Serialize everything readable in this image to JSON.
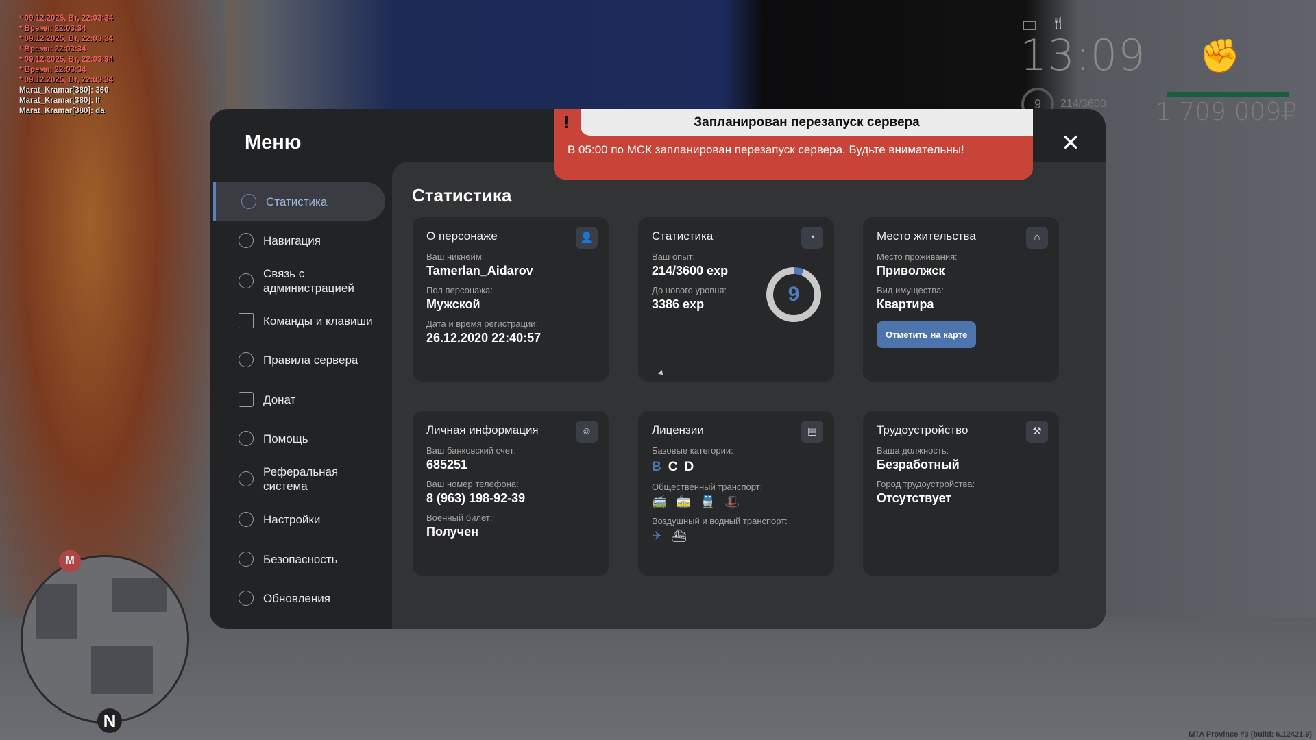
{
  "chat": [
    {
      "text": "* 09.12.2025, Вт, 22:03:34",
      "color": "#f06060"
    },
    {
      "text": "* Время: 22:03:34",
      "color": "#f06060"
    },
    {
      "text": "* 09.12.2025, Вт, 22:03:34",
      "color": "#f06060"
    },
    {
      "text": "* Время: 22:03:34",
      "color": "#f06060"
    },
    {
      "text": "* 09.12.2025, Вт, 22:03:34",
      "color": "#f06060"
    },
    {
      "text": "* Время: 22:03:34",
      "color": "#f06060"
    },
    {
      "text": "* 09.12.2025, Вт, 22:03:34",
      "color": "#f06060"
    },
    {
      "text": "Marat_Kramar[380]: 360",
      "color": "#e0e0e0"
    },
    {
      "text": "Marat_Kramar[380]: lf",
      "color": "#e0e0e0"
    },
    {
      "text": "Marat_Kramar[380]: da",
      "color": "#e0e0e0"
    }
  ],
  "hud": {
    "time": "13:09",
    "level": "9",
    "exp": "214/3600",
    "money": "1 709 009₽",
    "build": "MTA Province #3 (build: 6.12421.9)",
    "minimap_marker": "M",
    "compass": "N"
  },
  "alert": {
    "title": "Запланирован перезапуск сервера",
    "message": "В 05:00 по МСК запланирован перезапуск сервера. Будьте внимательны!",
    "icon": "!",
    "color": "#c84438"
  },
  "menu": {
    "title": "Меню",
    "close": "✕",
    "sidebar": [
      {
        "label": "Статистика",
        "active": true
      },
      {
        "label": "Навигация"
      },
      {
        "label": "Связь с администрацией"
      },
      {
        "label": "Команды и клавиши"
      },
      {
        "label": "Правила сервера"
      },
      {
        "label": "Донат"
      },
      {
        "label": "Помощь"
      },
      {
        "label": "Реферальная система"
      },
      {
        "label": "Настройки"
      },
      {
        "label": "Безопасность"
      },
      {
        "label": "Обновления"
      }
    ],
    "heading": "Статистика",
    "character": {
      "title": "О персонаже",
      "nick_label": "Ваш никнейм:",
      "nick": "Tamerlan_Aidarov",
      "sex_label": "Пол персонажа:",
      "sex": "Мужской",
      "reg_label": "Дата и время регистрации:",
      "reg": "26.12.2020 22:40:57"
    },
    "stats": {
      "title": "Статистика",
      "exp_label": "Ваш опыт:",
      "exp": "214/3600 exp",
      "next_label": "До нового уровня:",
      "next": "3386 exp",
      "level": "9",
      "progress": 0.06
    },
    "residence": {
      "title": "Место жительства",
      "place_label": "Место проживания:",
      "place": "Приволжск",
      "prop_label": "Вид имущества:",
      "prop": "Квартира",
      "button": "Отметить на карте"
    },
    "personal": {
      "title": "Личная информация",
      "bank_label": "Ваш банковский счет:",
      "bank": "685251",
      "phone_label": "Ваш номер телефона:",
      "phone": "8 (963) 198-92-39",
      "military_label": "Военный билет:",
      "military": "Получен"
    },
    "licenses": {
      "title": "Лицензии",
      "base_label": "Базовые категории:",
      "categories": [
        {
          "name": "B",
          "active": true
        },
        {
          "name": "C"
        },
        {
          "name": "D"
        }
      ],
      "public_label": "Общественный транспорт:",
      "air_label": "Воздушный и водный транспорт:"
    },
    "job": {
      "title": "Трудоустройство",
      "pos_label": "Ваша должность:",
      "pos": "Безработный",
      "city_label": "Город трудоустройства:",
      "city": "Отсутствует"
    }
  }
}
